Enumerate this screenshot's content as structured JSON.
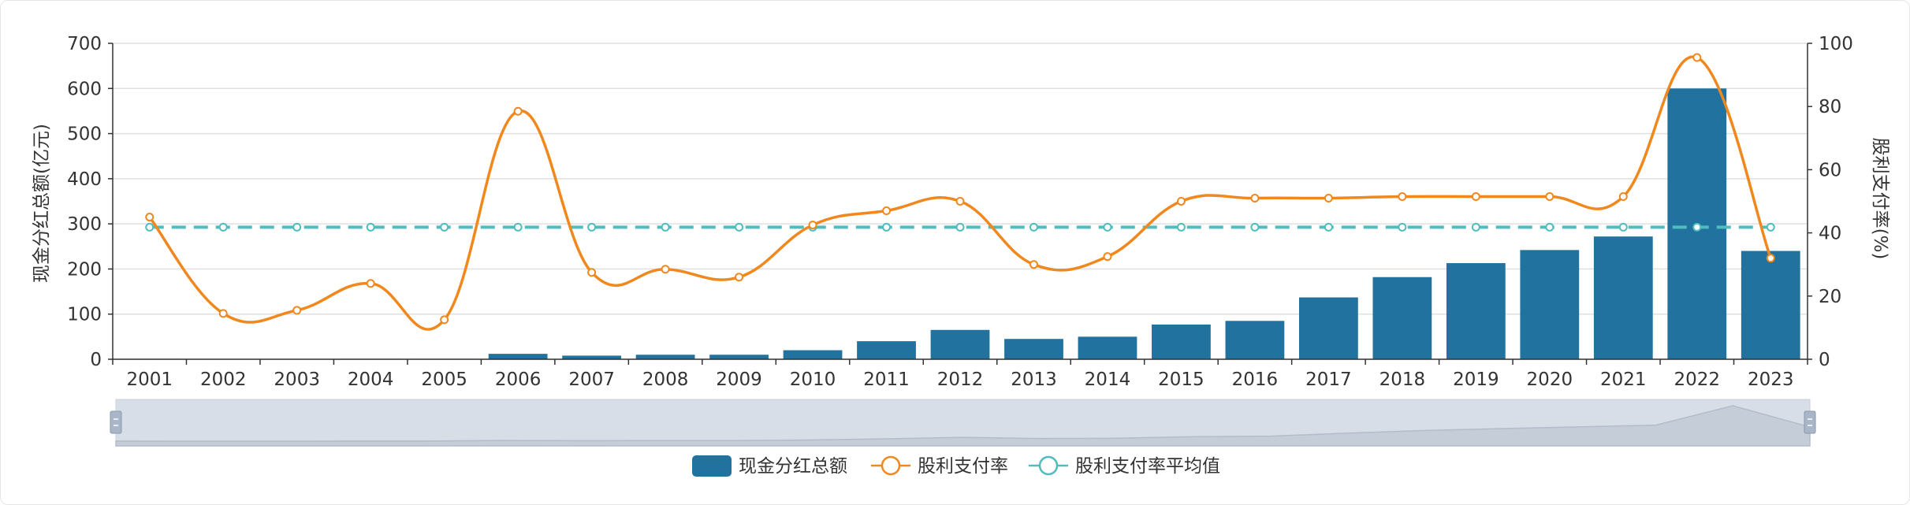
{
  "chart_data": {
    "type": "bar+line",
    "categories": [
      "2001",
      "2002",
      "2003",
      "2004",
      "2005",
      "2006",
      "2007",
      "2008",
      "2009",
      "2010",
      "2011",
      "2012",
      "2013",
      "2014",
      "2015",
      "2016",
      "2017",
      "2018",
      "2019",
      "2020",
      "2021",
      "2022",
      "2023"
    ],
    "bars": {
      "name": "现金分红总额",
      "color": "#21729e",
      "values": [
        1,
        0.5,
        0.5,
        1,
        1,
        12,
        8,
        10,
        10,
        20,
        40,
        65,
        45,
        50,
        77,
        85,
        137,
        182,
        213,
        242,
        272,
        600,
        240
      ]
    },
    "line": {
      "name": "股利支付率",
      "color": "#f0881e",
      "values": [
        45,
        14.5,
        15.5,
        24,
        12.5,
        78.5,
        27.5,
        28.5,
        26,
        42.5,
        47,
        50,
        30,
        32.5,
        50,
        51,
        51,
        51.5,
        51.5,
        51.5,
        51.5,
        95.5,
        32
      ]
    },
    "avg_line": {
      "name": "股利支付率平均值",
      "color": "#4fbdbd",
      "value": 41.8
    },
    "left_axis": {
      "label": "现金分红总额(亿元)",
      "min": 0,
      "max": 700,
      "ticks": [
        "0",
        "100",
        "200",
        "300",
        "400",
        "500",
        "600",
        "700"
      ]
    },
    "right_axis": {
      "label": "股利支付率(%)",
      "min": 0,
      "max": 100,
      "ticks": [
        "0",
        "20",
        "40",
        "60",
        "80",
        "100"
      ]
    },
    "grid": true,
    "legend": "bottom-center",
    "data_zoom_slider": true
  }
}
